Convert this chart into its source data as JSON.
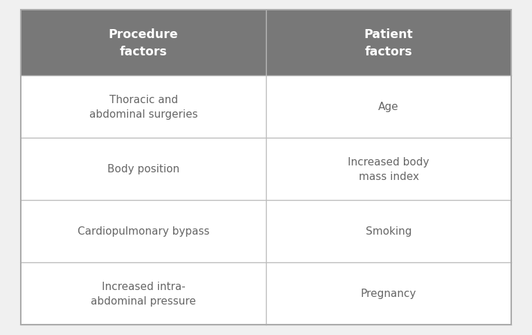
{
  "headers": [
    "Procedure\nfactors",
    "Patient\nfactors"
  ],
  "rows": [
    [
      "Thoracic and\nabdominal surgeries",
      "Age"
    ],
    [
      "Body position",
      "Increased body\nmass index"
    ],
    [
      "Cardiopulmonary bypass",
      "Smoking"
    ],
    [
      "Increased intra-\nabdominal pressure",
      "Pregnancy"
    ]
  ],
  "header_bg_color": "#787878",
  "header_text_color": "#ffffff",
  "row_bg_color": "#ffffff",
  "row_text_color": "#666666",
  "grid_line_color": "#bbbbbb",
  "outer_border_color": "#aaaaaa",
  "header_fontsize": 12.5,
  "row_fontsize": 11,
  "fig_bg_color": "#f0f0f0",
  "fig_width": 7.68,
  "fig_height": 4.85
}
